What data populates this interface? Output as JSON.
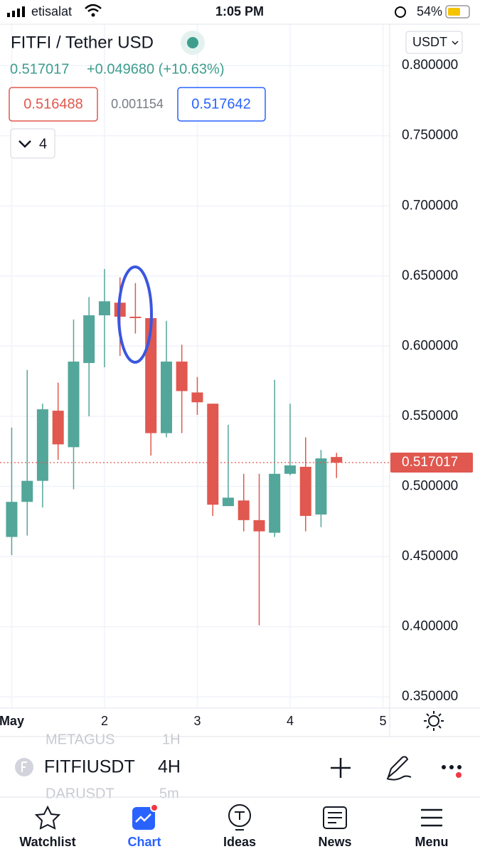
{
  "status_bar": {
    "carrier": "etisalat",
    "time": "1:05 PM",
    "battery": "54%"
  },
  "header": {
    "title": "FITFI / Tether USD",
    "price": "0.517017",
    "change": "+0.049680 (+10.63%)",
    "bid": "0.516488",
    "spread": "0.001154",
    "ask": "0.517642",
    "indicator_count": "4",
    "currency": "USDT"
  },
  "chart_data": {
    "type": "candlestick",
    "x": [
      1,
      1.167,
      1.333,
      1.5,
      1.667,
      1.833,
      2,
      2.167,
      2.333,
      2.5,
      2.667,
      2.833,
      3,
      3.167,
      3.333,
      3.5,
      3.667,
      3.833,
      4,
      4.167,
      4.333,
      4.5
    ],
    "open": [
      0.464,
      0.489,
      0.504,
      0.554,
      0.528,
      0.588,
      0.622,
      0.631,
      0.621,
      0.62,
      0.538,
      0.589,
      0.567,
      0.559,
      0.486,
      0.49,
      0.476,
      0.467,
      0.509,
      0.514,
      0.48,
      0.521
    ],
    "high": [
      0.542,
      0.583,
      0.559,
      0.574,
      0.619,
      0.635,
      0.655,
      0.649,
      0.645,
      0.624,
      0.618,
      0.601,
      0.578,
      0.559,
      0.544,
      0.509,
      0.509,
      0.576,
      0.559,
      0.535,
      0.526,
      0.524
    ],
    "low": [
      0.451,
      0.465,
      0.485,
      0.519,
      0.498,
      0.55,
      0.585,
      0.593,
      0.609,
      0.522,
      0.535,
      0.538,
      0.551,
      0.479,
      0.486,
      0.468,
      0.401,
      0.464,
      0.508,
      0.468,
      0.471,
      0.506
    ],
    "close": [
      0.489,
      0.504,
      0.555,
      0.53,
      0.589,
      0.622,
      0.632,
      0.621,
      0.62,
      0.538,
      0.589,
      0.568,
      0.56,
      0.487,
      0.492,
      0.476,
      0.468,
      0.509,
      0.515,
      0.479,
      0.52,
      0.517
    ],
    "up_color": "#53a69a",
    "down_color": "#e0584f",
    "last_price": 0.517017,
    "xlim": [
      0.874,
      5.073
    ],
    "xticks": [
      {
        "value": 1,
        "label": "May"
      },
      2,
      3,
      4,
      5
    ],
    "ylim": [
      0.342,
      0.829
    ],
    "yticks": [
      {
        "value": 0.35,
        "label": "0.350000"
      },
      {
        "value": 0.4,
        "label": "0.400000"
      },
      {
        "value": 0.45,
        "label": "0.450000"
      },
      {
        "value": 0.5,
        "label": "0.500000"
      },
      {
        "value": 0.55,
        "label": "0.550000"
      },
      {
        "value": 0.6,
        "label": "0.600000"
      },
      {
        "value": 0.65,
        "label": "0.650000"
      },
      {
        "value": 0.7,
        "label": "0.700000"
      },
      {
        "value": 0.75,
        "label": "0.750000"
      },
      {
        "value": 0.8,
        "label": "0.800000"
      }
    ],
    "grid": true
  },
  "symbol_bar": {
    "symbol": "FITFIUSDT",
    "interval": "4H",
    "faded_above": [
      "METAGUS",
      "1H"
    ],
    "faded_below": [
      "DARUSDT",
      "5m"
    ]
  },
  "tab_bar": {
    "tabs": [
      "Watchlist",
      "Chart",
      "Ideas",
      "News",
      "Menu"
    ]
  }
}
